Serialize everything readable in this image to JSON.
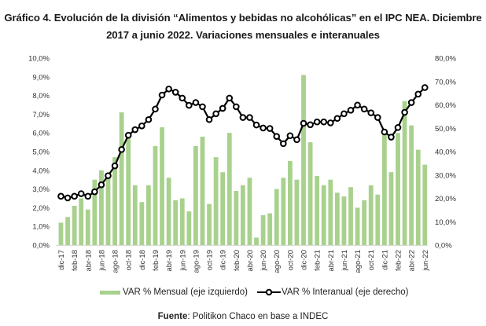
{
  "title_line1": "Gráfico 4. Evolución de la división “Alimentos y bebidas no alcohólicas” en el IPC NEA. Diciembre",
  "title_line2": "2017 a junio 2022. Variaciones mensuales e interanuales",
  "source_label": "Fuente",
  "source_text": ": Politikon Chaco en base a INDEC",
  "colors": {
    "bar": "#a9d18e",
    "line": "#000000",
    "marker_fill": "#ffffff"
  },
  "chart_data": {
    "type": "bar+line",
    "title": "Gráfico 4. Evolución de la división “Alimentos y bebidas no alcohólicas” en el IPC NEA. Diciembre 2017 a junio 2022. Variaciones mensuales e interanuales",
    "xlabel": "",
    "ylabel_left": "",
    "ylabel_right": "",
    "ylim_left": [
      0,
      10
    ],
    "ylim_right": [
      0,
      80
    ],
    "grid": false,
    "legend_position": "bottom",
    "left_ticks": [
      "0,0%",
      "1,0%",
      "2,0%",
      "3,0%",
      "4,0%",
      "5,0%",
      "6,0%",
      "7,0%",
      "8,0%",
      "9,0%",
      "10,0%"
    ],
    "right_ticks": [
      "0,0%",
      "10,0%",
      "20,0%",
      "30,0%",
      "40,0%",
      "50,0%",
      "60,0%",
      "70,0%",
      "80,0%"
    ],
    "x_tick_labels": [
      "dic-17",
      "feb-18",
      "abr-18",
      "jun-18",
      "ago-18",
      "oct-18",
      "dic-18",
      "feb-19",
      "abr-19",
      "jun-19",
      "ago-19",
      "oct-19",
      "dic-19",
      "feb-20",
      "abr-20",
      "jun-20",
      "ago-20",
      "oct-20",
      "dic-20",
      "feb-21",
      "abr-21",
      "jun-21",
      "ago-21",
      "oct-21",
      "dic-21",
      "feb-22",
      "abr-22",
      "jun-22"
    ],
    "categories": [
      "dic-17",
      "ene-18",
      "feb-18",
      "mar-18",
      "abr-18",
      "may-18",
      "jun-18",
      "jul-18",
      "ago-18",
      "sep-18",
      "oct-18",
      "nov-18",
      "dic-18",
      "ene-19",
      "feb-19",
      "mar-19",
      "abr-19",
      "may-19",
      "jun-19",
      "jul-19",
      "ago-19",
      "sep-19",
      "oct-19",
      "nov-19",
      "dic-19",
      "ene-20",
      "feb-20",
      "mar-20",
      "abr-20",
      "may-20",
      "jun-20",
      "jul-20",
      "ago-20",
      "sep-20",
      "oct-20",
      "nov-20",
      "dic-20",
      "ene-21",
      "feb-21",
      "mar-21",
      "abr-21",
      "may-21",
      "jun-21",
      "jul-21",
      "ago-21",
      "sep-21",
      "oct-21",
      "nov-21",
      "dic-21",
      "ene-22",
      "feb-22",
      "mar-22",
      "abr-22",
      "may-22",
      "jun-22"
    ],
    "series": [
      {
        "name": "VAR % Mensual (eje izquierdo)",
        "type": "bar",
        "axis": "left",
        "values": [
          1.2,
          1.5,
          2.1,
          2.5,
          1.9,
          3.5,
          4.0,
          3.8,
          4.7,
          7.1,
          5.7,
          3.2,
          2.3,
          3.2,
          5.3,
          6.3,
          3.6,
          2.4,
          2.5,
          1.8,
          5.3,
          5.8,
          2.2,
          4.7,
          3.9,
          6.0,
          2.9,
          3.2,
          3.6,
          0.4,
          1.6,
          1.7,
          3.0,
          3.6,
          4.5,
          3.5,
          9.1,
          5.5,
          3.7,
          3.2,
          3.5,
          2.8,
          2.6,
          3.1,
          2.0,
          2.4,
          3.2,
          2.7,
          5.9,
          3.9,
          6.0,
          7.7,
          6.4,
          5.1,
          4.3
        ]
      },
      {
        "name": "VAR % Interanual (eje derecho)",
        "type": "line",
        "axis": "right",
        "values": [
          20.9,
          20.2,
          20.9,
          22.0,
          20.9,
          22.8,
          25.8,
          29.7,
          33.9,
          40.9,
          47.0,
          49.4,
          51.0,
          53.7,
          58.2,
          64.2,
          66.8,
          65.4,
          62.9,
          59.8,
          61.0,
          59.2,
          53.7,
          56.2,
          58.5,
          62.9,
          59.2,
          54.6,
          54.6,
          51.4,
          50.1,
          49.9,
          46.5,
          43.4,
          46.8,
          45.1,
          52.1,
          51.5,
          52.7,
          52.7,
          52.3,
          54.2,
          56.2,
          57.7,
          59.9,
          58.2,
          56.6,
          54.6,
          48.4,
          46.2,
          50.3,
          56.8,
          61.0,
          64.6,
          67.4
        ]
      }
    ]
  }
}
